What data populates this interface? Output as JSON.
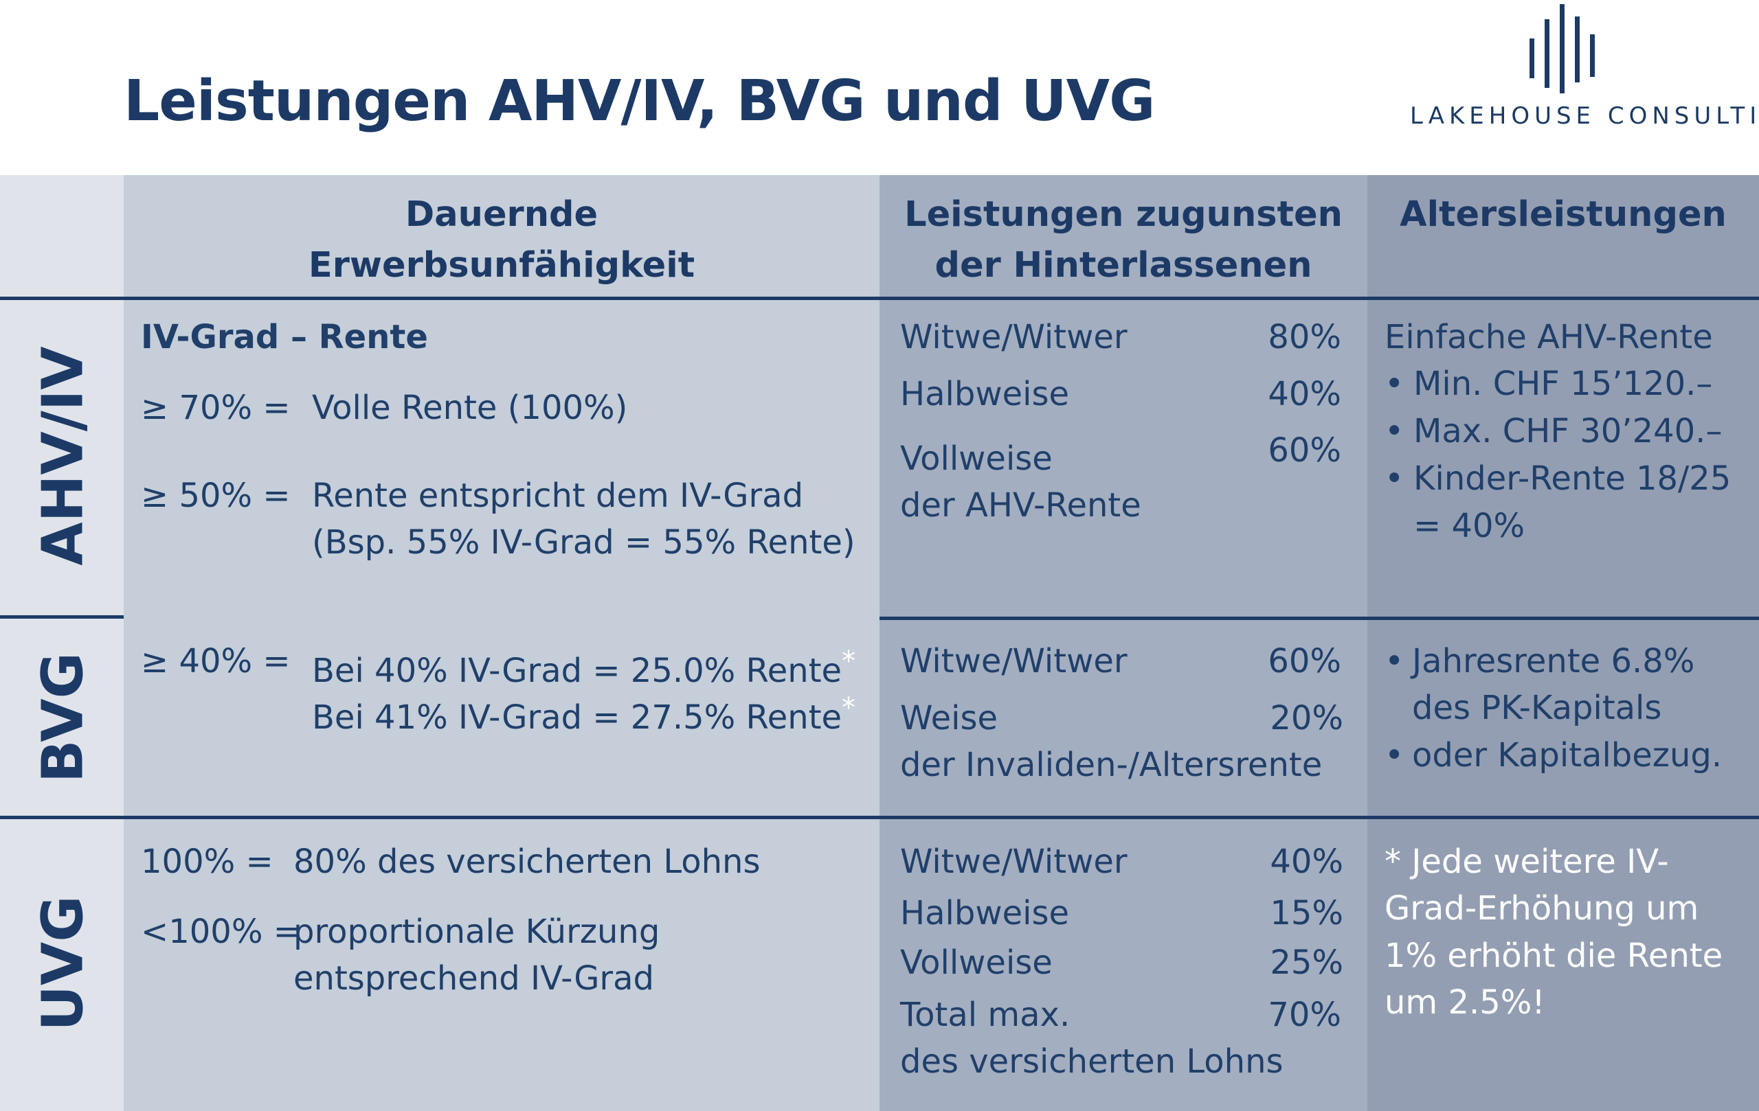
{
  "title": "Leistungen AHV/IV, BVG und UVG",
  "logo": {
    "text": "LAKEHOUSE CONSULTING"
  },
  "colors": {
    "navy": "#1d3a66",
    "col_label": "#e0e4ea",
    "col1": "#c5ced9",
    "col2": "#a3aec0",
    "col3": "#939eb2"
  },
  "headers": {
    "col1_line1": "Dauernde",
    "col1_line2": "Erwerbsunfähigkeit",
    "col2_line1": "Leistungen zugunsten",
    "col2_line2": "der Hinterlassenen",
    "col3": "Altersleistungen"
  },
  "rows": {
    "ahv": {
      "label": "AHV/IV",
      "col1": {
        "heading": "IV-Grad – Rente",
        "l1_key": "≥ 70% =",
        "l1_val": "Volle Rente (100%)",
        "l2_key": "≥ 50% =",
        "l2_val1": "Rente entspricht dem IV-Grad",
        "l2_val2": "(Bsp. 55% IV-Grad = 55% Rente)"
      },
      "col2": {
        "l1": "Witwe/Witwer",
        "l1_pct": "80%",
        "l2": "Halbweise",
        "l2_pct": "40%",
        "l3": "Vollweise",
        "l3_pct": "60%",
        "l4": "der AHV-Rente"
      },
      "col3": {
        "heading": "Einfache AHV-Rente",
        "b1": "Min.  CHF 15’120.–",
        "b2": "Max. CHF 30’240.–",
        "b3a": "Kinder-Rente 18/25",
        "b3b": "= 40%"
      }
    },
    "bvg": {
      "label": "BVG",
      "col1": {
        "key": "≥ 40% =",
        "v1": "Bei 40% IV-Grad = 25.0% Rente",
        "v2": "Bei 41% IV-Grad = 27.5% Rente",
        "star": "*"
      },
      "col2": {
        "l1": "Witwe/Witwer",
        "l1_pct": "60%",
        "l2": "Weise",
        "l2_pct": "20%",
        "l3": "der Invaliden-/Altersrente"
      },
      "col3": {
        "b1a": "Jahresrente 6.8%",
        "b1b": "des PK-Kapitals",
        "b2": " oder Kapitalbezug."
      }
    },
    "uvg": {
      "label": "UVG",
      "col1": {
        "l1_key": "100% =",
        "l1_val": "80% des versicherten Lohns",
        "l2_key": "<100% =",
        "l2_val1": "proportionale Kürzung",
        "l2_val2": "entsprechend IV-Grad"
      },
      "col2": {
        "l1": "Witwe/Witwer",
        "l1_pct": "40%",
        "l2": "Halbweise",
        "l2_pct": "15%",
        "l3": "Vollweise",
        "l3_pct": "25%",
        "l4": "Total max.",
        "l4_pct": "70%",
        "l5": "des versicherten Lohns"
      },
      "col3": {
        "n1": "* Jede weitere IV-",
        "n2": "Grad-Erhöhung um",
        "n3": "1% erhöht die Rente",
        "n4": "um 2.5%!"
      }
    }
  }
}
